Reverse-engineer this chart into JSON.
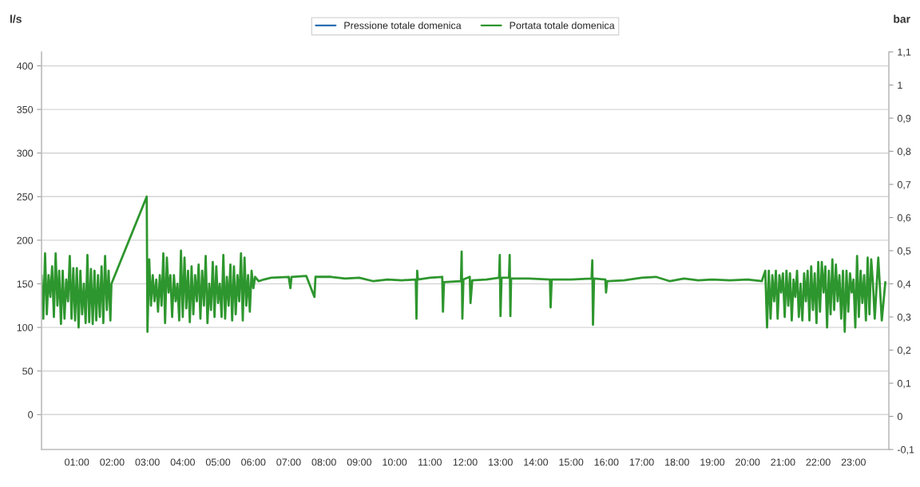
{
  "chart_data": {
    "type": "line",
    "xlabel": null,
    "ylabel": "l/s",
    "y2label": "bar",
    "legend": "top",
    "grid": "y",
    "marker": "none",
    "line_style": "solid",
    "xlim": [
      0,
      24
    ],
    "xticks": [
      {
        "value": 1,
        "label": "01:00"
      },
      {
        "value": 2,
        "label": "02:00"
      },
      {
        "value": 3,
        "label": "03:00"
      },
      {
        "value": 4,
        "label": "04:00"
      },
      {
        "value": 5,
        "label": "05:00"
      },
      {
        "value": 6,
        "label": "06:00"
      },
      {
        "value": 7,
        "label": "07:00"
      },
      {
        "value": 8,
        "label": "08:00"
      },
      {
        "value": 9,
        "label": "09:00"
      },
      {
        "value": 10,
        "label": "10:00"
      },
      {
        "value": 11,
        "label": "11:00"
      },
      {
        "value": 12,
        "label": "12:00"
      },
      {
        "value": 13,
        "label": "13:00"
      },
      {
        "value": 14,
        "label": "14:00"
      },
      {
        "value": 15,
        "label": "15:00"
      },
      {
        "value": 16,
        "label": "16:00"
      },
      {
        "value": 17,
        "label": "17:00"
      },
      {
        "value": 18,
        "label": "18:00"
      },
      {
        "value": 19,
        "label": "19:00"
      },
      {
        "value": 20,
        "label": "20:00"
      },
      {
        "value": 21,
        "label": "21:00"
      },
      {
        "value": 22,
        "label": "22:00"
      },
      {
        "value": 23,
        "label": "23:00"
      }
    ],
    "ylim": [
      -40,
      416
    ],
    "yticks": [
      0,
      50,
      100,
      150,
      200,
      250,
      300,
      350,
      400
    ],
    "y2lim": [
      -0.1,
      1.1
    ],
    "y2ticks": [
      {
        "value": -0.1,
        "label": "-0,1"
      },
      {
        "value": 0,
        "label": "0"
      },
      {
        "value": 0.1,
        "label": "0,1"
      },
      {
        "value": 0.2,
        "label": "0,2"
      },
      {
        "value": 0.3,
        "label": "0,3"
      },
      {
        "value": 0.4,
        "label": "0,4"
      },
      {
        "value": 0.5,
        "label": "0,5"
      },
      {
        "value": 0.6,
        "label": "0,6"
      },
      {
        "value": 0.7,
        "label": "0,7"
      },
      {
        "value": 0.8,
        "label": "0,8"
      },
      {
        "value": 0.9,
        "label": "0,9"
      },
      {
        "value": 1,
        "label": "1"
      },
      {
        "value": 1.1,
        "label": "1,1"
      }
    ],
    "series": [
      {
        "name": "Pressione totale domenica",
        "color": "#2a6fb0",
        "axis": "y2"
      },
      {
        "name": "Portata totale domenica",
        "color": "#2e962e",
        "axis": "y",
        "x": [
          0.0,
          0.05,
          0.1,
          0.15,
          0.2,
          0.25,
          0.3,
          0.35,
          0.4,
          0.45,
          0.5,
          0.55,
          0.6,
          0.65,
          0.7,
          0.75,
          0.8,
          0.85,
          0.9,
          0.95,
          1.0,
          1.05,
          1.1,
          1.15,
          1.2,
          1.25,
          1.3,
          1.35,
          1.4,
          1.45,
          1.5,
          1.55,
          1.6,
          1.65,
          1.7,
          1.75,
          1.8,
          1.85,
          1.9,
          1.95,
          1.98,
          2.98,
          3.0,
          3.05,
          3.1,
          3.15,
          3.2,
          3.25,
          3.3,
          3.35,
          3.4,
          3.45,
          3.5,
          3.55,
          3.6,
          3.65,
          3.7,
          3.75,
          3.8,
          3.85,
          3.9,
          3.95,
          4.0,
          4.05,
          4.1,
          4.15,
          4.2,
          4.25,
          4.3,
          4.35,
          4.4,
          4.45,
          4.5,
          4.55,
          4.6,
          4.65,
          4.7,
          4.75,
          4.8,
          4.85,
          4.9,
          4.95,
          5.0,
          5.05,
          5.1,
          5.15,
          5.2,
          5.25,
          5.3,
          5.35,
          5.4,
          5.45,
          5.5,
          5.55,
          5.6,
          5.65,
          5.7,
          5.75,
          5.8,
          5.85,
          5.9,
          5.95,
          6.0,
          6.05,
          6.15,
          6.3,
          6.5,
          7.0,
          7.05,
          7.08,
          7.5,
          7.73,
          7.76,
          8.2,
          8.6,
          9.0,
          9.4,
          9.8,
          10.2,
          10.6,
          10.62,
          10.64,
          10.66,
          11.0,
          11.35,
          11.37,
          11.4,
          11.88,
          11.9,
          11.92,
          11.95,
          12.13,
          12.15,
          12.2,
          12.6,
          12.96,
          12.98,
          13.0,
          13.03,
          13.24,
          13.26,
          13.28,
          13.3,
          13.8,
          14.4,
          14.42,
          14.45,
          15.0,
          15.58,
          15.6,
          15.62,
          15.65,
          15.97,
          15.99,
          16.02,
          16.5,
          17.0,
          17.4,
          17.8,
          18.2,
          18.6,
          19.0,
          19.5,
          20.0,
          20.4,
          20.5,
          20.55,
          20.6,
          20.65,
          20.7,
          20.75,
          20.8,
          20.85,
          20.9,
          20.95,
          21.0,
          21.05,
          21.1,
          21.15,
          21.2,
          21.25,
          21.3,
          21.35,
          21.4,
          21.45,
          21.5,
          21.55,
          21.6,
          21.65,
          21.7,
          21.75,
          21.8,
          21.85,
          21.9,
          21.95,
          22.0,
          22.05,
          22.1,
          22.15,
          22.2,
          22.25,
          22.3,
          22.35,
          22.4,
          22.45,
          22.5,
          22.55,
          22.6,
          22.65,
          22.7,
          22.75,
          22.8,
          22.85,
          22.9,
          22.95,
          23.0,
          23.05,
          23.1,
          23.15,
          23.2,
          23.25,
          23.3,
          23.35,
          23.4,
          23.45,
          23.5,
          23.55,
          23.6,
          23.7,
          23.8,
          23.9
        ],
        "values": [
          160,
          110,
          185,
          115,
          160,
          135,
          170,
          112,
          185,
          125,
          165,
          104,
          165,
          110,
          155,
          130,
          182,
          110,
          168,
          108,
          168,
          100,
          165,
          115,
          150,
          105,
          183,
          106,
          167,
          104,
          165,
          108,
          160,
          112,
          170,
          105,
          182,
          120,
          165,
          108,
          150,
          250,
          95,
          178,
          125,
          160,
          130,
          155,
          118,
          160,
          125,
          185,
          105,
          180,
          140,
          160,
          112,
          160,
          130,
          150,
          108,
          188,
          112,
          180,
          122,
          165,
          106,
          170,
          115,
          160,
          130,
          172,
          110,
          165,
          125,
          182,
          105,
          150,
          120,
          175,
          112,
          170,
          128,
          150,
          112,
          183,
          110,
          158,
          125,
          172,
          108,
          170,
          115,
          160,
          130,
          185,
          108,
          180,
          125,
          160,
          118,
          165,
          145,
          158,
          153,
          155,
          157,
          158,
          145,
          158,
          159,
          135,
          158,
          158,
          156,
          157,
          153,
          155,
          154,
          155,
          110,
          165,
          155,
          157,
          158,
          118,
          152,
          153,
          187,
          110,
          155,
          158,
          128,
          154,
          155,
          157,
          183,
          113,
          157,
          157,
          183,
          113,
          156,
          156,
          155,
          123,
          155,
          155,
          156,
          177,
          103,
          156,
          155,
          140,
          153,
          154,
          157,
          158,
          153,
          156,
          154,
          155,
          154,
          155,
          153,
          165,
          100,
          165,
          110,
          160,
          130,
          165,
          110,
          160,
          140,
          162,
          112,
          165,
          125,
          162,
          108,
          155,
          135,
          165,
          112,
          150,
          108,
          162,
          130,
          165,
          108,
          170,
          120,
          162,
          105,
          175,
          118,
          175,
          140,
          170,
          100,
          165,
          115,
          178,
          120,
          172,
          130,
          160,
          110,
          165,
          95,
          165,
          118,
          162,
          140,
          155,
          100,
          182,
          112,
          165,
          128,
          160,
          108,
          180,
          115,
          178,
          150,
          110,
          180,
          108,
          152
        ]
      }
    ]
  }
}
